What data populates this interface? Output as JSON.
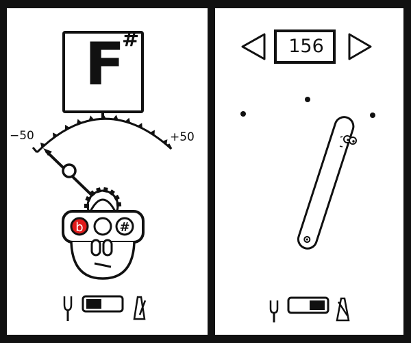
{
  "tuner": {
    "note_letter": "F",
    "note_accidental": "#",
    "scale_min_label": "−50",
    "scale_max_label": "+50",
    "deviation_cents": -38,
    "flat_button_symbol": "b",
    "sharp_button_symbol": "#",
    "flat_indicator_color": "#e01b1b",
    "mode_switch_position": "tuner"
  },
  "metronome": {
    "tempo_bpm": "156",
    "mode_switch_position": "metronome"
  }
}
